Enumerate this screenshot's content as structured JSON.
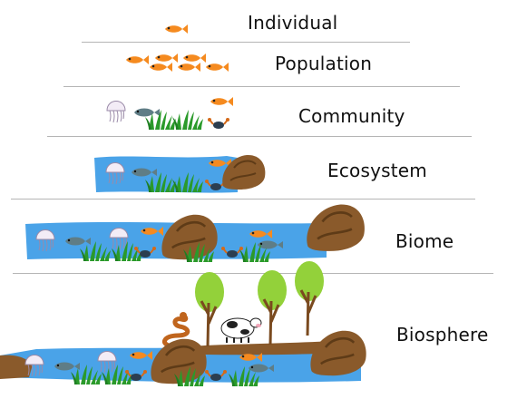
{
  "levels": [
    {
      "id": "individual",
      "label": "Individual"
    },
    {
      "id": "population",
      "label": "Population"
    },
    {
      "id": "community",
      "label": "Community"
    },
    {
      "id": "ecosystem",
      "label": "Ecosystem"
    },
    {
      "id": "biome",
      "label": "Biome"
    },
    {
      "id": "biosphere",
      "label": "Biosphere"
    }
  ],
  "colors": {
    "water": "#4aa3e8",
    "fish": "#f58a1f",
    "grass": "#2a9a2a",
    "rock": "#8a5a2b",
    "tree_leaf": "#93d13a",
    "tree_trunk": "#7a4a1f",
    "divider": "#b5b5b5"
  }
}
